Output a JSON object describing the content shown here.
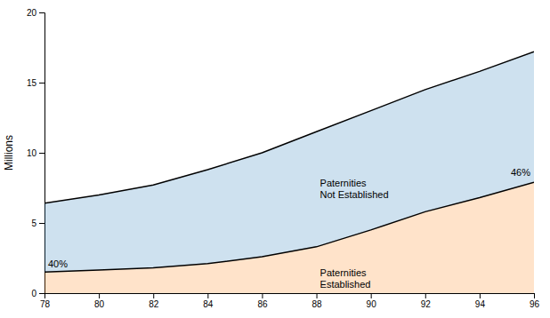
{
  "chart_data": {
    "type": "area",
    "y_label": "Millions",
    "x": [
      78,
      80,
      82,
      84,
      86,
      88,
      90,
      92,
      94,
      96
    ],
    "series": [
      {
        "color": "#000000",
        "values": [
          6.4,
          7.0,
          7.7,
          8.8,
          10.0,
          11.5,
          13.0,
          14.5,
          15.8,
          17.2
        ]
      },
      {
        "color": "#000000",
        "values": [
          1.5,
          1.65,
          1.8,
          2.1,
          2.6,
          3.3,
          4.5,
          5.8,
          6.8,
          7.9
        ]
      }
    ],
    "xlim": [
      78,
      96
    ],
    "ylim": [
      0,
      20
    ],
    "xticks": [
      78,
      80,
      82,
      84,
      86,
      88,
      90,
      92,
      94,
      96
    ],
    "yticks": [
      0,
      5,
      10,
      15,
      20
    ],
    "grid": false,
    "annotations": [
      {
        "text": "40%"
      },
      {
        "text": "Paternities\nEstablished"
      },
      {
        "text": "Paternities\nNot Established"
      },
      {
        "text": "46%"
      }
    ]
  }
}
